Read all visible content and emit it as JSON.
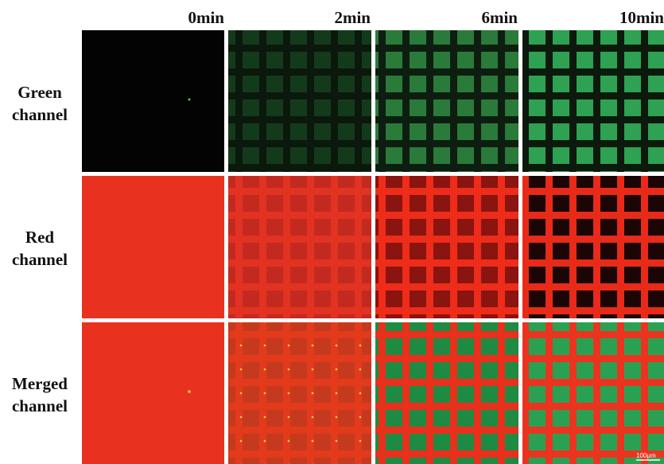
{
  "columns": [
    "0min",
    "2min",
    "6min",
    "10min"
  ],
  "rows": [
    "Green channel",
    "Red channel",
    "Merged channel"
  ],
  "scale_bar": "100μm"
}
